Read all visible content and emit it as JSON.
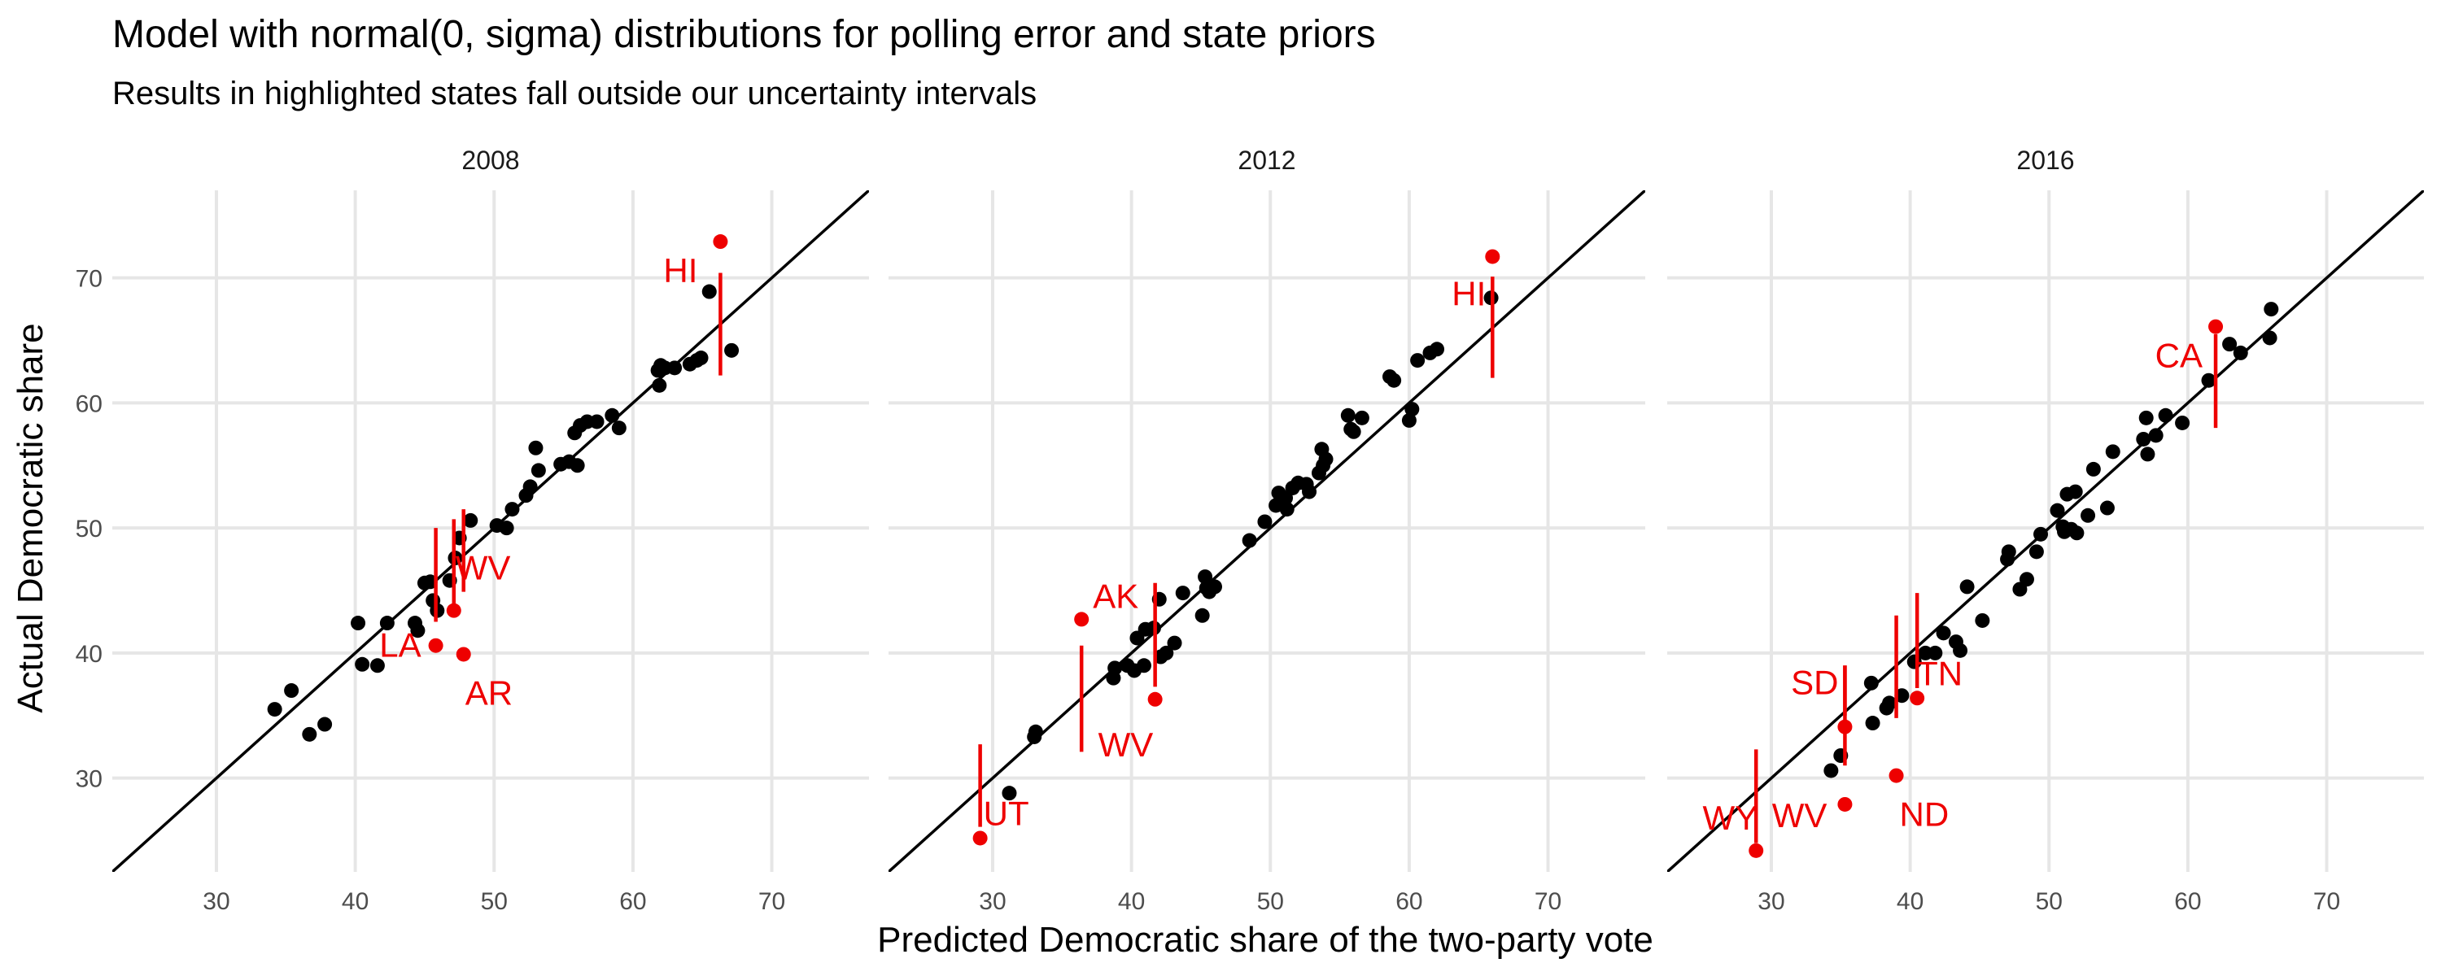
{
  "title": "Model with normal(0, sigma) distributions for polling error and state priors",
  "subtitle": "Results in highlighted states fall outside our uncertainty intervals",
  "xlabel": "Predicted Democratic share of the two-party vote",
  "ylabel": "Actual Democratic share",
  "colors": {
    "point": "#000000",
    "highlight": "#ee0000",
    "grid": "#e6e6e6",
    "reference_line": "#000000"
  },
  "chart_data": [
    {
      "type": "scatter",
      "panel": "2008",
      "xlim": [
        22.5,
        77
      ],
      "ylim": [
        22.5,
        77
      ],
      "x_ticks": [
        30,
        40,
        50,
        60,
        70
      ],
      "y_ticks": [
        30,
        40,
        50,
        60,
        70
      ],
      "grid": true,
      "reference_line": "y = x",
      "points": [
        [
          34.2,
          35.5
        ],
        [
          35.4,
          37.0
        ],
        [
          36.7,
          33.5
        ],
        [
          37.8,
          34.3
        ],
        [
          40.2,
          42.4
        ],
        [
          40.5,
          39.1
        ],
        [
          41.6,
          39.0
        ],
        [
          42.3,
          42.4
        ],
        [
          44.3,
          42.4
        ],
        [
          44.5,
          41.8
        ],
        [
          45.0,
          45.6
        ],
        [
          45.4,
          45.7
        ],
        [
          45.6,
          44.2
        ],
        [
          45.9,
          43.4
        ],
        [
          46.8,
          45.8
        ],
        [
          47.2,
          47.6
        ],
        [
          47.5,
          49.2
        ],
        [
          48.3,
          50.6
        ],
        [
          50.2,
          50.2
        ],
        [
          50.9,
          50.0
        ],
        [
          51.3,
          51.5
        ],
        [
          52.3,
          52.6
        ],
        [
          52.6,
          53.3
        ],
        [
          53.0,
          56.4
        ],
        [
          53.2,
          54.6
        ],
        [
          54.8,
          55.1
        ],
        [
          55.4,
          55.3
        ],
        [
          55.8,
          57.6
        ],
        [
          56.0,
          55.0
        ],
        [
          56.2,
          58.2
        ],
        [
          56.7,
          58.5
        ],
        [
          57.4,
          58.5
        ],
        [
          58.5,
          59.0
        ],
        [
          59.0,
          58.0
        ],
        [
          61.8,
          62.6
        ],
        [
          61.9,
          61.4
        ],
        [
          62.0,
          63.0
        ],
        [
          62.3,
          62.8
        ],
        [
          63.0,
          62.8
        ],
        [
          64.1,
          63.1
        ],
        [
          64.6,
          63.4
        ],
        [
          64.9,
          63.6
        ],
        [
          65.5,
          68.9
        ],
        [
          67.1,
          64.2
        ]
      ],
      "highlighted": [
        {
          "label": "HI",
          "predicted": 66.3,
          "actual": 72.9,
          "interval": [
            62.2,
            70.4
          ]
        },
        {
          "label": "LA",
          "predicted": 45.8,
          "actual": 40.6,
          "interval": [
            42.5,
            50.0
          ]
        },
        {
          "label": "WV",
          "predicted": 47.1,
          "actual": 43.4,
          "interval": [
            43.9,
            50.7
          ]
        },
        {
          "label": "AR",
          "predicted": 47.8,
          "actual": 39.9,
          "interval": [
            44.9,
            51.5
          ]
        }
      ]
    },
    {
      "type": "scatter",
      "panel": "2012",
      "xlim": [
        22.5,
        77
      ],
      "ylim": [
        22.5,
        77
      ],
      "x_ticks": [
        30,
        40,
        50,
        60,
        70
      ],
      "y_ticks": [
        30,
        40,
        50,
        60,
        70
      ],
      "grid": true,
      "reference_line": "y = x",
      "points": [
        [
          31.2,
          28.8
        ],
        [
          33.0,
          33.3
        ],
        [
          33.1,
          33.7
        ],
        [
          38.7,
          38.0
        ],
        [
          38.8,
          38.8
        ],
        [
          39.7,
          39.0
        ],
        [
          40.2,
          38.6
        ],
        [
          40.4,
          41.2
        ],
        [
          40.9,
          39.0
        ],
        [
          41.0,
          41.9
        ],
        [
          41.6,
          42.0
        ],
        [
          42.0,
          44.3
        ],
        [
          42.1,
          39.7
        ],
        [
          42.5,
          40.0
        ],
        [
          43.1,
          40.8
        ],
        [
          43.7,
          44.8
        ],
        [
          45.1,
          43.0
        ],
        [
          45.3,
          46.1
        ],
        [
          45.4,
          45.2
        ],
        [
          45.6,
          44.9
        ],
        [
          46.0,
          45.3
        ],
        [
          48.5,
          49.0
        ],
        [
          49.6,
          50.5
        ],
        [
          50.4,
          51.8
        ],
        [
          50.6,
          52.8
        ],
        [
          51.1,
          52.4
        ],
        [
          51.2,
          51.5
        ],
        [
          51.6,
          53.2
        ],
        [
          52.0,
          53.6
        ],
        [
          52.6,
          53.5
        ],
        [
          52.8,
          52.9
        ],
        [
          53.5,
          54.4
        ],
        [
          53.7,
          56.3
        ],
        [
          53.8,
          55.0
        ],
        [
          54.0,
          55.5
        ],
        [
          55.6,
          59.0
        ],
        [
          55.8,
          57.9
        ],
        [
          56.0,
          57.7
        ],
        [
          56.6,
          58.8
        ],
        [
          58.6,
          62.1
        ],
        [
          58.9,
          61.8
        ],
        [
          60.0,
          58.6
        ],
        [
          60.2,
          59.5
        ],
        [
          60.6,
          63.4
        ],
        [
          61.5,
          64.0
        ],
        [
          62.0,
          64.3
        ],
        [
          65.9,
          68.4
        ]
      ],
      "highlighted": [
        {
          "label": "HI",
          "predicted": 66.0,
          "actual": 71.7,
          "interval": [
            62.0,
            70.1
          ]
        },
        {
          "label": "AK",
          "predicted": 36.4,
          "actual": 42.7,
          "interval": [
            32.1,
            40.6
          ]
        },
        {
          "label": "WV",
          "predicted": 41.7,
          "actual": 36.3,
          "interval": [
            37.3,
            45.6
          ]
        },
        {
          "label": "UT",
          "predicted": 29.1,
          "actual": 25.2,
          "interval": [
            26.1,
            32.7
          ]
        }
      ]
    },
    {
      "type": "scatter",
      "panel": "2016",
      "xlim": [
        22.5,
        77
      ],
      "ylim": [
        22.5,
        77
      ],
      "x_ticks": [
        30,
        40,
        50,
        60,
        70
      ],
      "y_ticks": [
        30,
        40,
        50,
        60,
        70
      ],
      "grid": true,
      "reference_line": "y = x",
      "points": [
        [
          34.3,
          30.6
        ],
        [
          35.0,
          31.8
        ],
        [
          37.2,
          37.6
        ],
        [
          37.3,
          34.4
        ],
        [
          38.3,
          35.6
        ],
        [
          38.5,
          36.0
        ],
        [
          39.4,
          36.6
        ],
        [
          40.3,
          39.3
        ],
        [
          41.1,
          40.0
        ],
        [
          41.8,
          40.0
        ],
        [
          42.4,
          41.6
        ],
        [
          43.3,
          40.9
        ],
        [
          43.6,
          40.2
        ],
        [
          44.1,
          45.3
        ],
        [
          45.2,
          42.6
        ],
        [
          47.0,
          47.5
        ],
        [
          47.1,
          48.1
        ],
        [
          47.9,
          45.1
        ],
        [
          48.4,
          45.9
        ],
        [
          49.1,
          48.1
        ],
        [
          49.4,
          49.5
        ],
        [
          50.6,
          51.4
        ],
        [
          51.0,
          50.1
        ],
        [
          51.1,
          49.7
        ],
        [
          51.6,
          49.9
        ],
        [
          51.3,
          52.7
        ],
        [
          51.9,
          52.9
        ],
        [
          52.0,
          49.6
        ],
        [
          52.8,
          51.0
        ],
        [
          53.2,
          54.7
        ],
        [
          54.2,
          51.6
        ],
        [
          54.6,
          56.1
        ],
        [
          56.8,
          57.1
        ],
        [
          57.0,
          58.8
        ],
        [
          57.1,
          55.9
        ],
        [
          57.7,
          57.4
        ],
        [
          58.4,
          59.0
        ],
        [
          59.6,
          58.4
        ],
        [
          61.5,
          61.8
        ],
        [
          63.0,
          64.7
        ],
        [
          63.8,
          64.0
        ],
        [
          65.9,
          65.2
        ],
        [
          66.0,
          67.5
        ]
      ],
      "highlighted": [
        {
          "label": "CA",
          "predicted": 62.0,
          "actual": 66.1,
          "interval": [
            58.0,
            65.5
          ]
        },
        {
          "label": "TN",
          "predicted": 40.5,
          "actual": 36.4,
          "interval": [
            37.2,
            44.8
          ]
        },
        {
          "label": "SD",
          "predicted": 35.3,
          "actual": 34.1,
          "interval": [
            35.0,
            39.0
          ]
        },
        {
          "label": "ND",
          "predicted": 39.0,
          "actual": 30.2,
          "interval": [
            34.8,
            43.0
          ]
        },
        {
          "label": "WV",
          "predicted": 35.3,
          "actual": 27.9,
          "interval": [
            31.0,
            39.0
          ]
        },
        {
          "label": "WY",
          "predicted": 28.9,
          "actual": 24.2,
          "interval": [
            24.8,
            32.3
          ]
        }
      ],
      "label_positions_note": "TN, SD, ND, WV, WY labels sit near their points"
    }
  ]
}
